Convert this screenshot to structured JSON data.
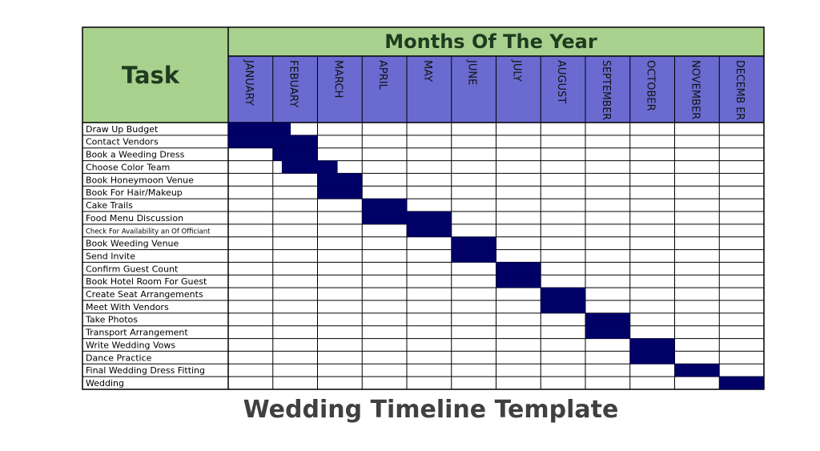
{
  "header": {
    "task_label": "Task",
    "months_title": "Months Of The Year"
  },
  "months": [
    "JANUARY",
    "FEBUARY",
    "MARCH",
    "APRIL",
    "MAY",
    "JUNE",
    "JULY",
    "AUGUST",
    "SEPTEMBER",
    "OCTOBER",
    "NOVEMBER",
    "DECEMB ER"
  ],
  "tasks": [
    {
      "label": "Draw Up Budget",
      "start": 0,
      "end": 1.4
    },
    {
      "label": "Contact Vendors",
      "start": 0,
      "end": 2
    },
    {
      "label": "Book a Weeding Dress",
      "start": 1,
      "end": 2
    },
    {
      "label": "Choose Color Team",
      "start": 1.2,
      "end": 2.45
    },
    {
      "label": "Book Honeymoon Venue",
      "start": 2,
      "end": 3
    },
    {
      "label": "Book For Hair/Makeup",
      "start": 2,
      "end": 3
    },
    {
      "label": "Cake Trails",
      "start": 3,
      "end": 4
    },
    {
      "label": "Food Menu Discussion",
      "start": 3,
      "end": 5
    },
    {
      "label": "Check For Availability an Of Officiant",
      "start": 4,
      "end": 5
    },
    {
      "label": "Book Weeding Venue",
      "start": 5,
      "end": 6
    },
    {
      "label": "Send Invite",
      "start": 5,
      "end": 6
    },
    {
      "label": "Confirm Guest Count",
      "start": 6,
      "end": 7
    },
    {
      "label": "Book Hotel Room For Guest",
      "start": 6,
      "end": 7
    },
    {
      "label": "Create Seat Arrangements",
      "start": 7,
      "end": 8
    },
    {
      "label": "Meet With Vendors",
      "start": 7,
      "end": 8
    },
    {
      "label": "Take Photos",
      "start": 8,
      "end": 9
    },
    {
      "label": "Transport Arrangement",
      "start": 8,
      "end": 9
    },
    {
      "label": "Write Wedding Vows",
      "start": 9,
      "end": 10
    },
    {
      "label": "Dance Practice",
      "start": 9,
      "end": 10
    },
    {
      "label": "Final Wedding Dress Fitting",
      "start": 10,
      "end": 11
    },
    {
      "label": "Wedding",
      "start": 11,
      "end": 12
    }
  ],
  "colors": {
    "header_green": "#a9d18e",
    "month_purple": "#6a6ad0",
    "bar_navy": "#000066",
    "grid": "#000000",
    "caption": "#404040"
  },
  "caption": "Wedding Timeline Template"
}
